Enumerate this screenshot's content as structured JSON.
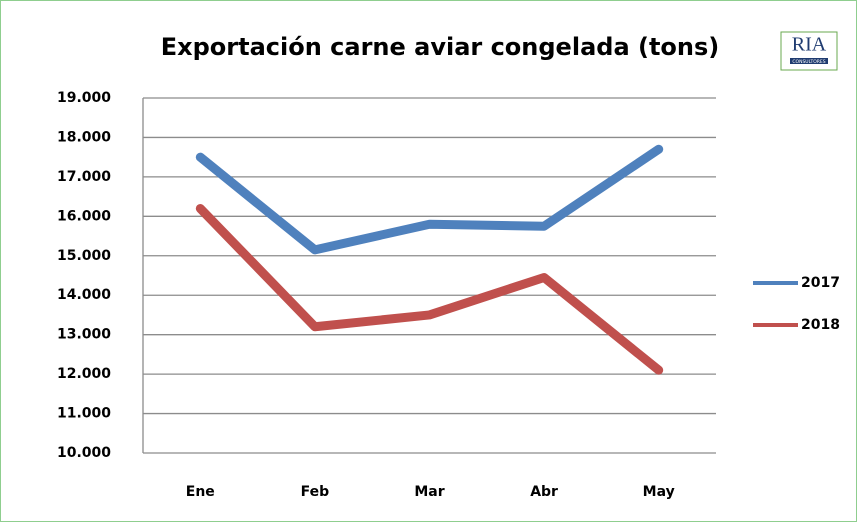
{
  "chart_data": {
    "type": "line",
    "title": "Exportación carne aviar congelada (tons)",
    "categories": [
      "Ene",
      "Feb",
      "Mar",
      "Abr",
      "May"
    ],
    "series": [
      {
        "name": "2017",
        "color": "#4f81bd",
        "values": [
          17500,
          15150,
          15800,
          15750,
          17700
        ]
      },
      {
        "name": "2018",
        "color": "#c0504d",
        "values": [
          16200,
          13200,
          13500,
          14450,
          12100
        ]
      }
    ],
    "ylim": [
      10000,
      19000
    ],
    "yticks": [
      {
        "value": 10000,
        "label": "10.000"
      },
      {
        "value": 11000,
        "label": "11.000"
      },
      {
        "value": 12000,
        "label": "12.000"
      },
      {
        "value": 13000,
        "label": "13.000"
      },
      {
        "value": 14000,
        "label": "14.000"
      },
      {
        "value": 15000,
        "label": "15.000"
      },
      {
        "value": 16000,
        "label": "16.000"
      },
      {
        "value": 17000,
        "label": "17.000"
      },
      {
        "value": 18000,
        "label": "18.000"
      },
      {
        "value": 19000,
        "label": "19.000"
      }
    ],
    "grid": true,
    "legend": "right"
  },
  "logo": {
    "text": "RIA",
    "subtext": "CONSULTORES"
  }
}
